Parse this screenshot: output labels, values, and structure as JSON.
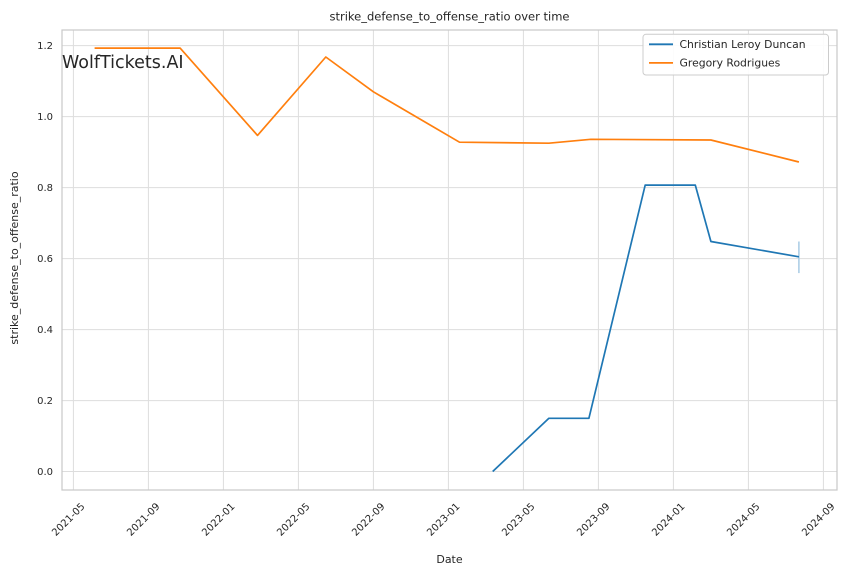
{
  "figure": {
    "watermark": "WolfTickets.AI"
  },
  "chart_data": {
    "type": "line",
    "title": "strike_defense_to_offense_ratio over time",
    "xlabel": "Date",
    "ylabel": "strike_defense_to_offense_ratio",
    "grid": true,
    "legend_position": "upper right",
    "x_tick_labels": [
      "2021-05",
      "2021-09",
      "2022-01",
      "2022-05",
      "2022-09",
      "2023-01",
      "2023-05",
      "2023-09",
      "2024-01",
      "2024-05",
      "2024-09"
    ],
    "y_ticks": [
      0.0,
      0.2,
      0.4,
      0.6,
      0.8,
      1.0,
      1.2
    ],
    "xlim_dates": [
      "2021-04-13",
      "2024-09-23"
    ],
    "ylim": [
      -0.052,
      1.244
    ],
    "series": [
      {
        "name": "Christian Leroy Duncan",
        "color": "#1f77b4",
        "points": [
          {
            "date": "2023-03-12",
            "value": 0.0
          },
          {
            "date": "2023-06-12",
            "value": 0.15
          },
          {
            "date": "2023-08-16",
            "value": 0.15
          },
          {
            "date": "2023-11-16",
            "value": 0.807
          },
          {
            "date": "2024-02-06",
            "value": 0.807
          },
          {
            "date": "2024-03-01",
            "value": 0.648
          },
          {
            "date": "2024-07-22",
            "value": 0.605
          }
        ],
        "error_bar_last": {
          "low": 0.559,
          "high": 0.648,
          "color": "#a8cbe4"
        }
      },
      {
        "name": "Gregory Rodrigues",
        "color": "#ff7f0e",
        "points": [
          {
            "date": "2021-06-05",
            "value": 1.193
          },
          {
            "date": "2021-10-22",
            "value": 1.193
          },
          {
            "date": "2022-02-26",
            "value": 0.947
          },
          {
            "date": "2022-06-15",
            "value": 1.168
          },
          {
            "date": "2022-09-01",
            "value": 1.07
          },
          {
            "date": "2023-01-19",
            "value": 0.928
          },
          {
            "date": "2023-06-12",
            "value": 0.925
          },
          {
            "date": "2023-08-19",
            "value": 0.936
          },
          {
            "date": "2024-03-01",
            "value": 0.934
          },
          {
            "date": "2024-07-22",
            "value": 0.872
          }
        ]
      }
    ]
  },
  "colors": {
    "background": "#ffffff",
    "grid": "#dddddd",
    "spine": "#c8c8c8",
    "text": "#262626",
    "watermark": "#c9c9c9",
    "legend_border": "#cccccc",
    "legend_bg": "#ffffff"
  }
}
